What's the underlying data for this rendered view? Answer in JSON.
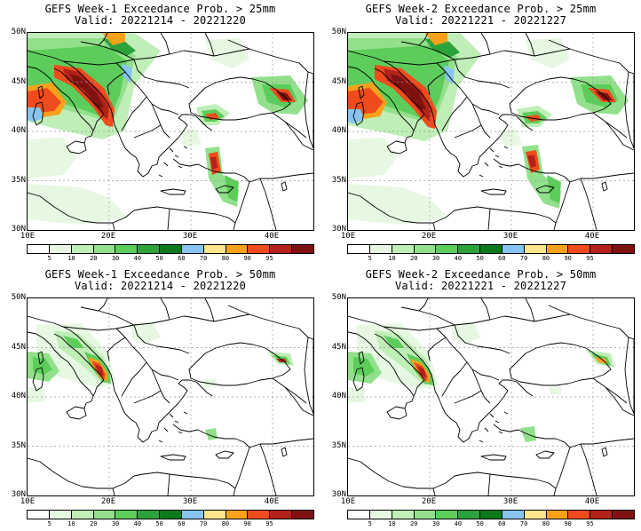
{
  "panels": [
    {
      "id": "w1-25",
      "title_line1": "GEFS Week-1 Exceedance Prob. > 25mm",
      "title_line2": "Valid: 20221214 - 20221220"
    },
    {
      "id": "w2-25",
      "title_line1": "GEFS Week-2 Exceedance Prob. > 25mm",
      "title_line2": "Valid: 20221221 - 20221227"
    },
    {
      "id": "w1-50",
      "title_line1": "GEFS Week-1 Exceedance Prob. > 50mm",
      "title_line2": "Valid: 20221214 - 20221220"
    },
    {
      "id": "w2-50",
      "title_line1": "GEFS Week-2 Exceedance Prob. > 50mm",
      "title_line2": "Valid: 20221221 - 20221227"
    }
  ],
  "lat_labels": [
    "50N",
    "45N",
    "40N",
    "35N",
    "30N"
  ],
  "lon_labels": [
    "10E",
    "20E",
    "30E",
    "40E"
  ],
  "colorbar": {
    "labels": [
      "5",
      "10",
      "20",
      "30",
      "40",
      "50",
      "60",
      "70",
      "80",
      "90",
      "95"
    ],
    "colors": [
      "#ffffff",
      "#e6f8e2",
      "#bfeeb7",
      "#93e08c",
      "#5ccd5a",
      "#2ca33a",
      "#0b7a1f",
      "#87c4f0",
      "#fde58c",
      "#f9a11b",
      "#ef4b1c",
      "#b3221a",
      "#7f1111"
    ]
  },
  "map_extent": {
    "lon_min": 10,
    "lon_max": 45,
    "lat_min": 30,
    "lat_max": 50
  }
}
